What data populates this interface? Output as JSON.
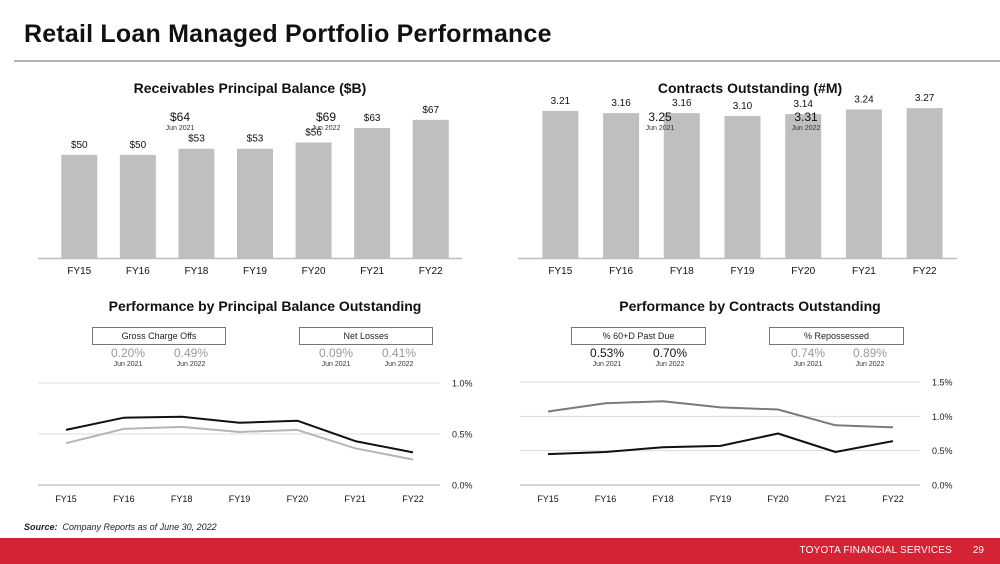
{
  "page": {
    "title": "Retail Loan Managed Portfolio Performance",
    "source_label": "Source:",
    "source_text": "Company Reports as of June 30, 2022",
    "footer_brand": "TOYOTA FINANCIAL SERVICES",
    "page_number": "29"
  },
  "colors": {
    "bar": "#bfbfbf",
    "footer": "#d52234",
    "line_dark": "#111111",
    "line_light": "#b5b5b5",
    "line_mid": "#7a7a7a",
    "grid": "#dcdcdc"
  },
  "panels": {
    "receivables": {
      "callouts": [
        {
          "value": "$64",
          "date": "Jun 2021"
        },
        {
          "value": "$69",
          "date": "Jun 2022"
        }
      ]
    },
    "contracts": {
      "callouts": [
        {
          "value": "3.25",
          "date": "Jun 2021"
        },
        {
          "value": "3.31",
          "date": "Jun 2022"
        }
      ]
    },
    "perf_balance": {
      "box_left": "Gross Charge Offs",
      "box_right": "Net Losses",
      "callouts": [
        {
          "value": "0.20%",
          "date": "Jun 2021"
        },
        {
          "value": "0.49%",
          "date": "Jun 2022"
        },
        {
          "value": "0.09%",
          "date": "Jun 2021"
        },
        {
          "value": "0.41%",
          "date": "Jun 2022"
        }
      ]
    },
    "perf_contracts": {
      "box_left": "% 60+D Past Due",
      "box_right": "% Repossessed",
      "callouts": [
        {
          "value": "0.53%",
          "date": "Jun 2021"
        },
        {
          "value": "0.70%",
          "date": "Jun 2022"
        },
        {
          "value": "0.74%",
          "date": "Jun 2021"
        },
        {
          "value": "0.89%",
          "date": "Jun 2022"
        }
      ]
    }
  },
  "chart_data": [
    {
      "type": "bar",
      "title": "Receivables Principal Balance ($B)",
      "categories": [
        "FY15",
        "FY16",
        "FY18",
        "FY19",
        "FY20",
        "FY21",
        "FY22"
      ],
      "values": [
        50,
        50,
        53,
        53,
        56,
        63,
        67
      ],
      "labels": [
        "$50",
        "$50",
        "$53",
        "$53",
        "$56",
        "$63",
        "$67"
      ],
      "ylim": [
        0,
        80
      ],
      "xlabel": "",
      "ylabel": ""
    },
    {
      "type": "bar",
      "title": "Contracts Outstanding (#M)",
      "categories": [
        "FY15",
        "FY16",
        "FY18",
        "FY19",
        "FY20",
        "FY21",
        "FY22"
      ],
      "values": [
        3.21,
        3.16,
        3.16,
        3.1,
        3.14,
        3.24,
        3.27
      ],
      "labels": [
        "3.21",
        "3.16",
        "3.16",
        "3.10",
        "3.14",
        "3.24",
        "3.27"
      ],
      "ylim": [
        0,
        3.6
      ],
      "xlabel": "",
      "ylabel": ""
    },
    {
      "type": "line",
      "title": "Performance by  Principal Balance Outstanding",
      "categories": [
        "FY15",
        "FY16",
        "FY18",
        "FY19",
        "FY20",
        "FY21",
        "FY22"
      ],
      "series": [
        {
          "name": "Gross Charge Offs",
          "values": [
            0.54,
            0.66,
            0.67,
            0.61,
            0.63,
            0.43,
            0.32
          ],
          "color_key": "line_dark"
        },
        {
          "name": "Net Losses",
          "values": [
            0.41,
            0.55,
            0.57,
            0.52,
            0.54,
            0.36,
            0.25
          ],
          "color_key": "line_light"
        }
      ],
      "ylim": [
        0,
        1.0
      ],
      "yticks": [
        "0.0%",
        "0.5%",
        "1.0%"
      ],
      "ytick_values": [
        0,
        0.5,
        1.0
      ],
      "grid": true,
      "yaxis_side": "right"
    },
    {
      "type": "line",
      "title": "Performance by  Contracts Outstanding",
      "categories": [
        "FY15",
        "FY16",
        "FY18",
        "FY19",
        "FY20",
        "FY21",
        "FY22"
      ],
      "series": [
        {
          "name": "% 60+D Past Due",
          "values": [
            0.45,
            0.48,
            0.55,
            0.57,
            0.75,
            0.48,
            0.64
          ],
          "color_key": "line_dark"
        },
        {
          "name": "% Repossessed",
          "values": [
            1.07,
            1.19,
            1.22,
            1.13,
            1.1,
            0.87,
            0.84
          ],
          "color_key": "line_mid"
        }
      ],
      "ylim": [
        0,
        1.5
      ],
      "yticks": [
        "0.0%",
        "0.5%",
        "1.0%",
        "1.5%"
      ],
      "ytick_values": [
        0,
        0.5,
        1.0,
        1.5
      ],
      "grid": true,
      "yaxis_side": "right"
    }
  ]
}
